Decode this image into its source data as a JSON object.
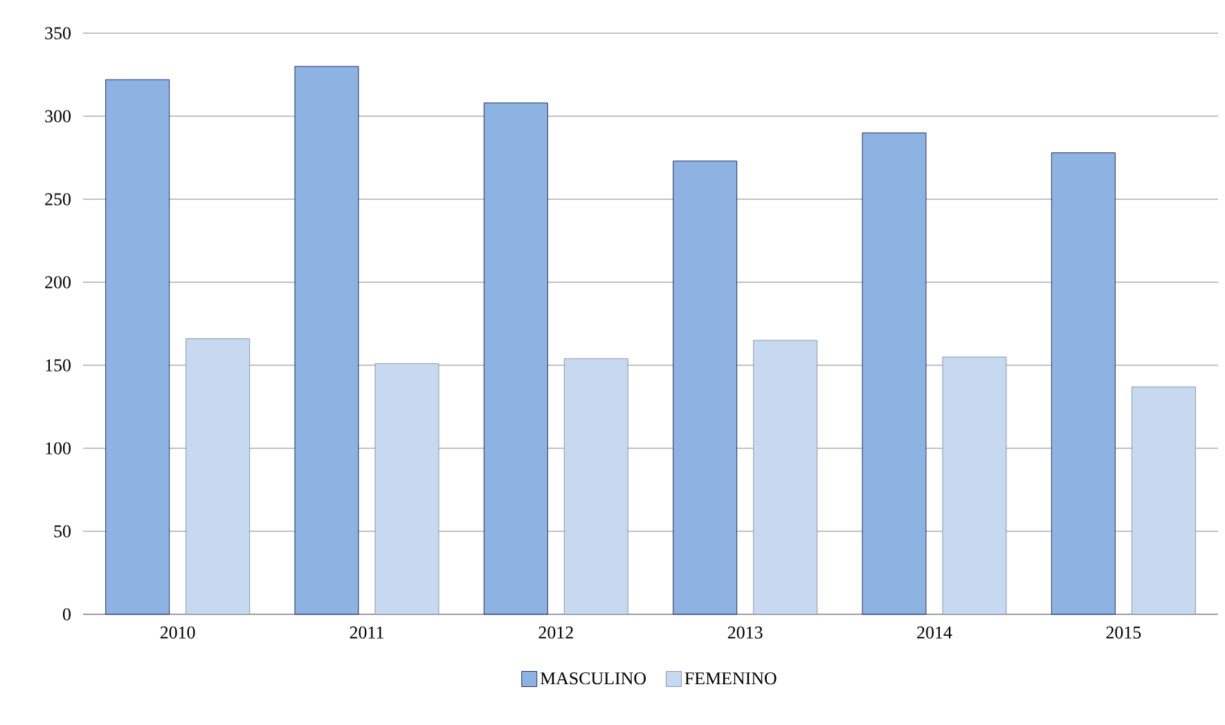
{
  "chart_data": {
    "type": "bar",
    "categories": [
      "2010",
      "2011",
      "2012",
      "2013",
      "2014",
      "2015"
    ],
    "series": [
      {
        "name": "MASCULINO",
        "color": "#8db3e2",
        "values": [
          322,
          330,
          308,
          273,
          290,
          278
        ]
      },
      {
        "name": "FEMENINO",
        "color": "#c6d9f1",
        "values": [
          166,
          151,
          154,
          165,
          155,
          137
        ]
      }
    ],
    "ylim": [
      0,
      350
    ],
    "yticks": [
      0,
      50,
      100,
      150,
      200,
      250,
      300,
      350
    ],
    "grid": "y",
    "legend": "bottom"
  }
}
